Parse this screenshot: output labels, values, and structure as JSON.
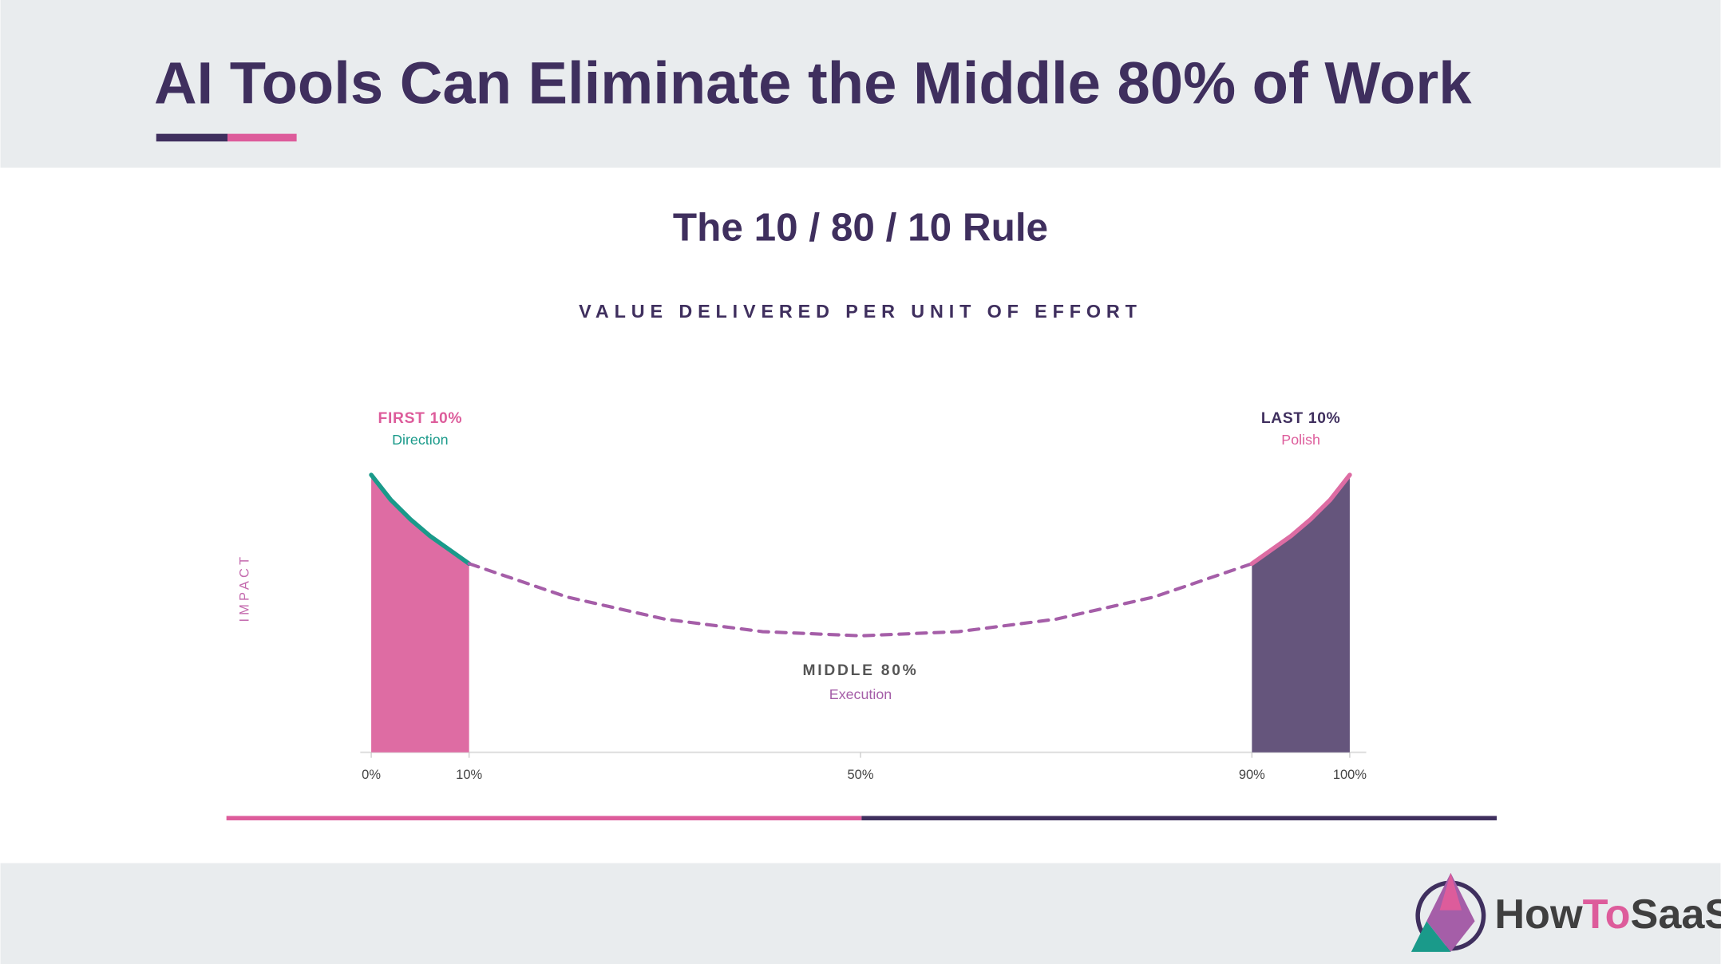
{
  "header": {
    "title": "AI Tools Can Eliminate the Middle 80% of Work"
  },
  "chart_data": {
    "type": "segmented-curve",
    "title": "The 10 / 80 / 10 Rule",
    "subtitle": "VALUE DELIVERED PER UNIT OF EFFORT",
    "ylabel": "IMPACT",
    "xlim": [
      0,
      100
    ],
    "ylim": [
      0,
      100
    ],
    "xticks": [
      {
        "value": 0,
        "label": "0%"
      },
      {
        "value": 10,
        "label": "10%"
      },
      {
        "value": 50,
        "label": "50%"
      },
      {
        "value": 90,
        "label": "90%"
      },
      {
        "value": 100,
        "label": "100%"
      }
    ],
    "segments": [
      {
        "label": "FIRST 10%",
        "sublabel": "Direction",
        "fill": "#de6ca3",
        "color": "#1a9a8a",
        "dashed": false,
        "x": [
          0,
          2,
          4,
          6,
          8,
          10
        ],
        "values": [
          100,
          91,
          84,
          78,
          73,
          68
        ]
      },
      {
        "label": "MIDDLE 80%",
        "sublabel": "Execution",
        "fill": null,
        "color": "#a55ea8",
        "dashed": true,
        "x": [
          10,
          20,
          30,
          40,
          50,
          60,
          70,
          80,
          90
        ],
        "values": [
          68,
          56,
          48,
          43.5,
          42,
          43.5,
          48,
          56,
          68
        ]
      },
      {
        "label": "LAST 10%",
        "sublabel": "Polish",
        "fill": "#65557c",
        "color": "#dd6ca3",
        "dashed": false,
        "x": [
          90,
          92,
          94,
          96,
          98,
          100
        ],
        "values": [
          68,
          73,
          78,
          84,
          91,
          100
        ]
      }
    ]
  },
  "footer": {
    "brand": [
      "How",
      "To",
      "SaaS"
    ]
  }
}
